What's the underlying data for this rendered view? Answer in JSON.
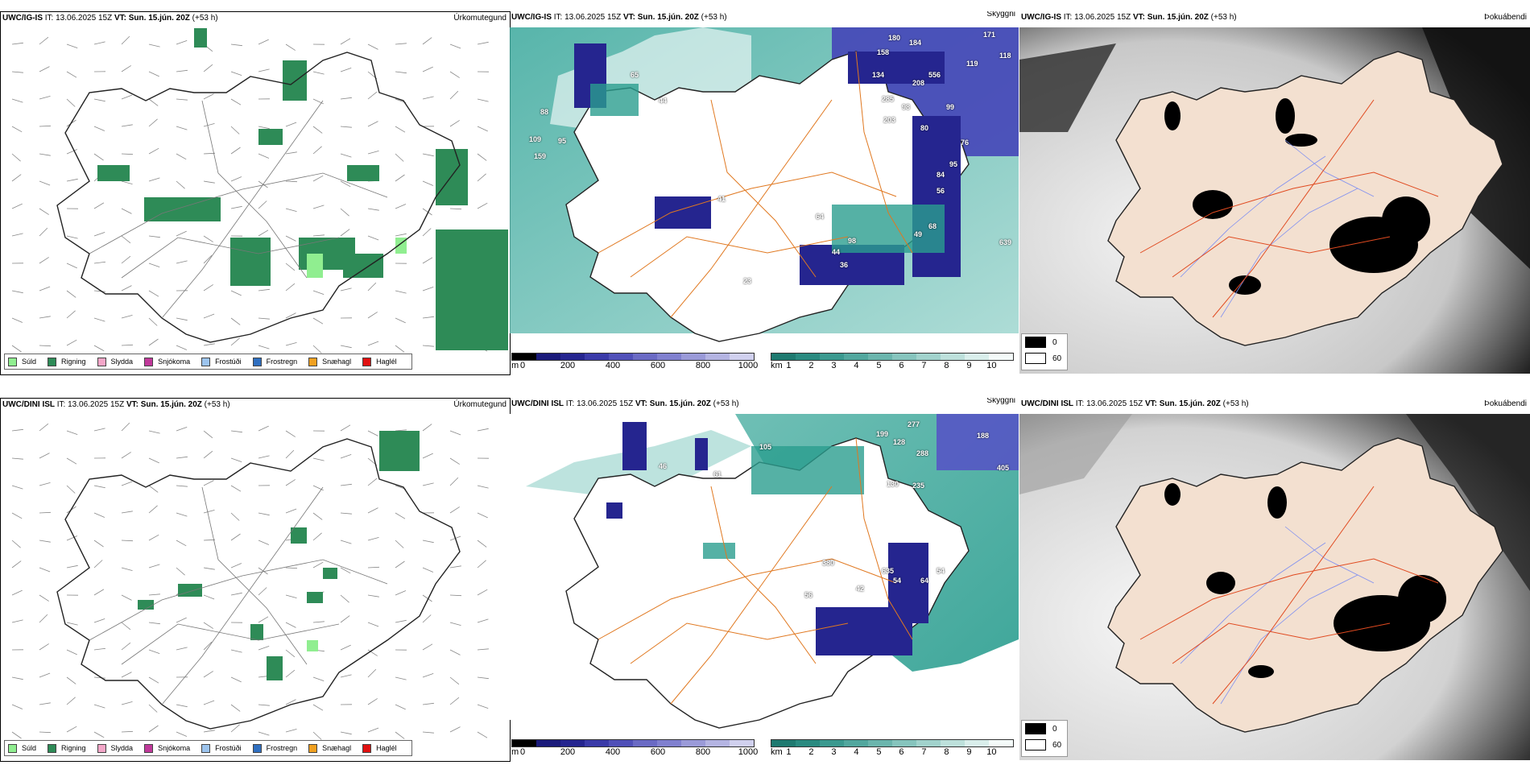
{
  "colors": {
    "rain": "#2e8b57",
    "drizzle": "#90ee90",
    "outline": "#222222",
    "roads": "#e07820",
    "land": "#f3e0d0",
    "sea_teal": "#2a9d8f",
    "cloud_blue": "#1e1e8c"
  },
  "rows": [
    {
      "model": "UWC/IG-IS",
      "precip": {
        "hdr_model": "UWC/IG-IS",
        "it_label": "IT:",
        "it_value": "13.06.2025 15Z",
        "vt_label": "VT:",
        "vt_value": "Sun. 15.jún. 20Z",
        "lead": "(+53 h)",
        "title": "Úrkomutegund"
      },
      "cloud": {
        "hdr_model": "UWC/IG-IS",
        "it_label": "IT:",
        "it_value": "13.06.2025 15Z",
        "vt_label": "VT:",
        "vt_value": "Sun. 15.jún. 20Z",
        "lead": "(+53 h)",
        "title": "Skyggni",
        "labels": [
          "180",
          "184",
          "171",
          "118",
          "158",
          "119",
          "65",
          "44",
          "88",
          "109",
          "95",
          "159",
          "134",
          "556",
          "208",
          "99",
          "285",
          "98",
          "203",
          "80",
          "76",
          "95",
          "84",
          "56",
          "41",
          "64",
          "98",
          "49",
          "44",
          "36",
          "68",
          "639",
          "23"
        ]
      },
      "fog": {
        "hdr_model": "UWC/IG-IS",
        "it_label": "IT:",
        "it_value": "13.06.2025 15Z",
        "vt_label": "VT:",
        "vt_value": "Sun. 15.jún. 20Z",
        "lead": "(+53 h)",
        "title": "Þokuábendi"
      }
    },
    {
      "model": "UWC/DINI ISL",
      "precip": {
        "hdr_model": "UWC/DINI ISL",
        "it_label": "IT:",
        "it_value": "13.06.2025 15Z",
        "vt_label": "VT:",
        "vt_value": "Sun. 15.jún. 20Z",
        "lead": "(+53 h)",
        "title": "Úrkomutegund"
      },
      "cloud": {
        "hdr_model": "UWC/DINI ISL",
        "it_label": "IT:",
        "it_value": "13.06.2025 15Z",
        "vt_label": "VT:",
        "vt_value": "Sun. 15.jún. 20Z",
        "lead": "(+53 h)",
        "title": "Skyggni",
        "labels": [
          "277",
          "188",
          "199",
          "128",
          "288",
          "405",
          "105",
          "46",
          "61",
          "130",
          "235",
          "380",
          "635",
          "54",
          "56",
          "42",
          "54",
          "64"
        ]
      },
      "fog": {
        "hdr_model": "UWC/DINI ISL",
        "it_label": "IT:",
        "it_value": "13.06.2025 15Z",
        "vt_label": "VT:",
        "vt_value": "Sun. 15.jún. 20Z",
        "lead": "(+53 h)",
        "title": "Þokuábendi"
      }
    }
  ],
  "precip_legend": [
    {
      "label": "Súld",
      "color": "#90ee90"
    },
    {
      "label": "Rigning",
      "color": "#2e8b57"
    },
    {
      "label": "Slydda",
      "color": "#f4a6c8"
    },
    {
      "label": "Snjókoma",
      "color": "#c0399a"
    },
    {
      "label": "Frostúði",
      "color": "#9cc4ee"
    },
    {
      "label": "Frostregn",
      "color": "#2f6fc0"
    },
    {
      "label": "Snæhagl",
      "color": "#f0a020"
    },
    {
      "label": "Haglél",
      "color": "#e01010"
    }
  ],
  "colorbar_m": {
    "unit": "m",
    "ticks": [
      "0",
      "200",
      "400",
      "600",
      "800",
      "1000"
    ],
    "colors": [
      "#000000",
      "#1a1a7a",
      "#25258f",
      "#3a3aa8",
      "#5050b8",
      "#6a6ac4",
      "#8080cf",
      "#9a9ad8",
      "#b4b4e2",
      "#d0d0ee"
    ]
  },
  "colorbar_km": {
    "unit": "km",
    "ticks": [
      "1",
      "2",
      "3",
      "4",
      "5",
      "6",
      "7",
      "8",
      "9",
      "10"
    ],
    "colors": [
      "#1f7a70",
      "#2a8a80",
      "#3b998f",
      "#52a79e",
      "#6bb5ad",
      "#86c4bd",
      "#a1d2cc",
      "#bde0db",
      "#d9eeeb",
      "#f4faf9"
    ]
  },
  "fog_legend": [
    {
      "label": "0",
      "color": "#000000"
    },
    {
      "label": "60",
      "color": "#ffffff"
    }
  ]
}
